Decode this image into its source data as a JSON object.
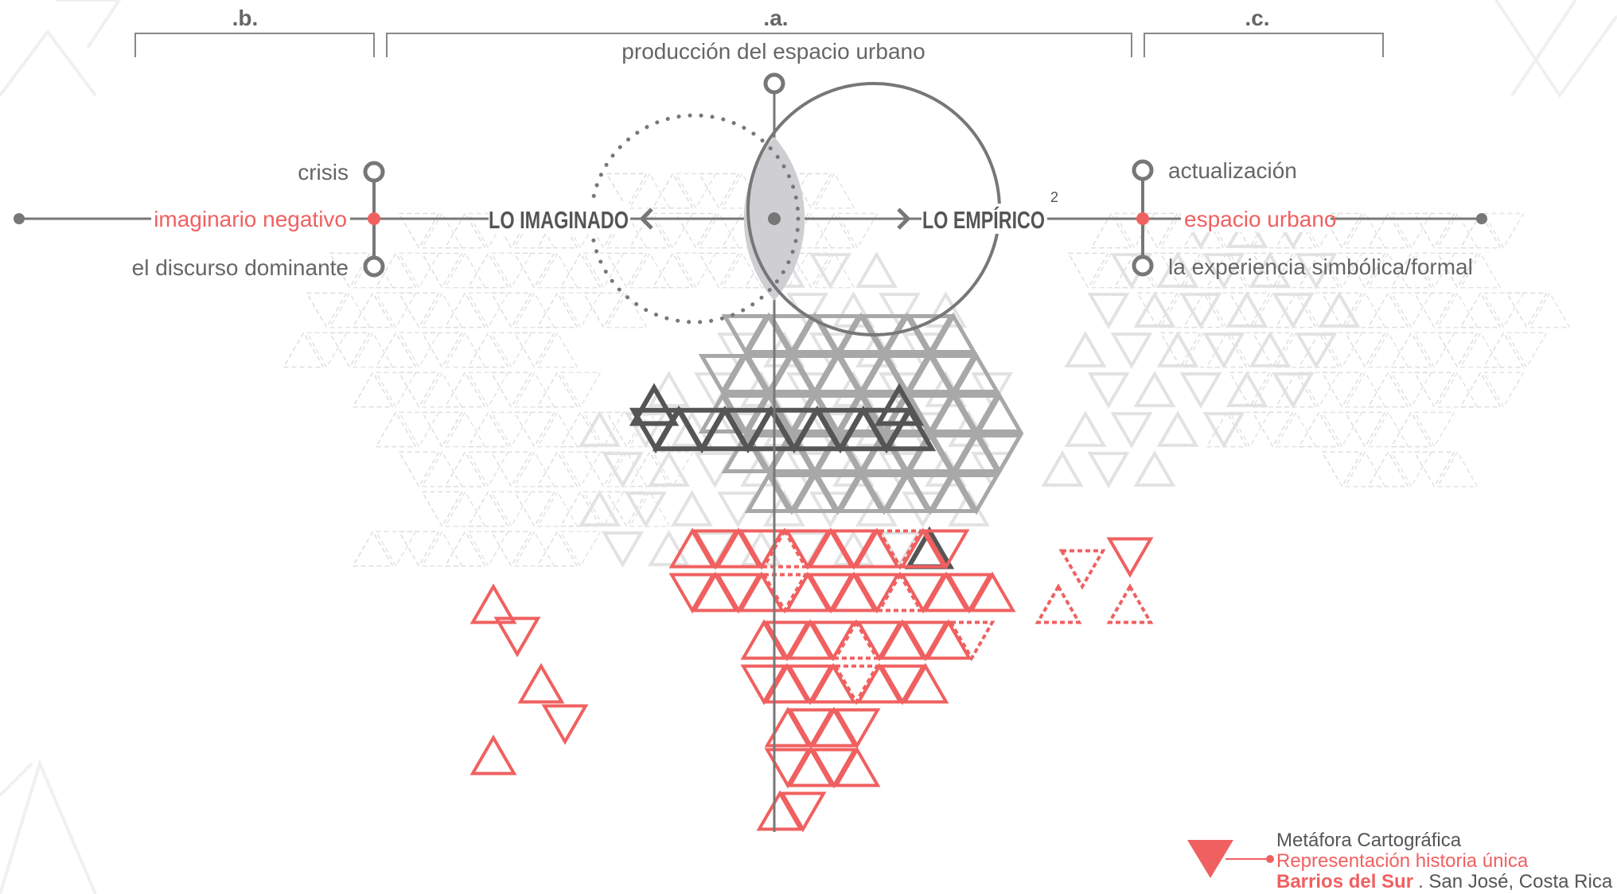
{
  "sections": {
    "b": ".b.",
    "a": ".a.",
    "c": ".c."
  },
  "top_label": "producción del espacio urbano",
  "left": {
    "top": "crisis",
    "mid": "imaginario negativo",
    "bottom": "el discurso dominante"
  },
  "center": {
    "imaginado": "LO IMAGINADO",
    "empirico": "LO EMPÍRICO",
    "superscript": "2"
  },
  "right": {
    "top": "actualización",
    "mid": "espacio urbano",
    "bottom": "la experiencia simbólica/formal"
  },
  "legend": {
    "line1": "Metáfora Cartográfica",
    "line2": "Representación historia única",
    "line3_bold": "Barrios del Sur",
    "line3_rest": ". San José, Costa Rica"
  },
  "colors": {
    "accent": "#f06060",
    "dark": "#555555",
    "mid": "#a8a8a8",
    "light": "#dcdcdc"
  }
}
